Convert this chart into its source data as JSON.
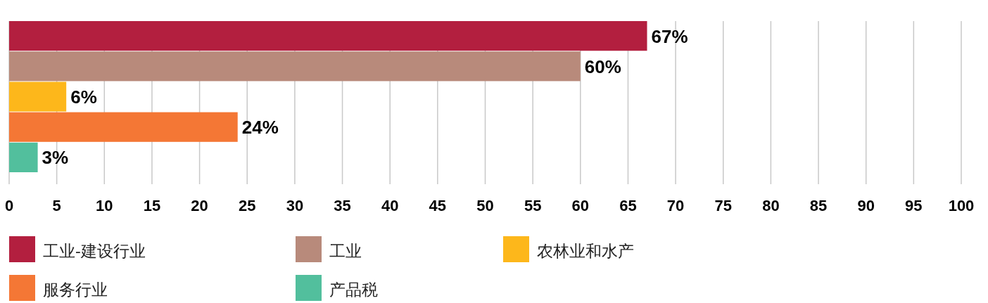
{
  "chart_data": {
    "type": "bar",
    "orientation": "horizontal",
    "categories": [
      null
    ],
    "series": [
      {
        "name": "工业-建设行业",
        "color": "#b31f3f",
        "values": [
          67
        ],
        "value_labels": [
          "67%"
        ]
      },
      {
        "name": "工业",
        "color": "#b88a7b",
        "values": [
          60
        ],
        "value_labels": [
          "60%"
        ]
      },
      {
        "name": "农林业和水产",
        "color": "#fdb71b",
        "values": [
          6
        ],
        "value_labels": [
          "6%"
        ]
      },
      {
        "name": "服务行业",
        "color": "#f47735",
        "values": [
          24
        ],
        "value_labels": [
          "24%"
        ]
      },
      {
        "name": "产品税",
        "color": "#52bf9d",
        "values": [
          3
        ],
        "value_labels": [
          "3%"
        ]
      }
    ],
    "xlim": [
      0,
      100
    ],
    "xticks": [
      0,
      5,
      10,
      15,
      20,
      25,
      30,
      35,
      40,
      45,
      50,
      55,
      60,
      65,
      70,
      75,
      80,
      85,
      90,
      95,
      100
    ],
    "grid": "x",
    "legend": "bottom"
  }
}
